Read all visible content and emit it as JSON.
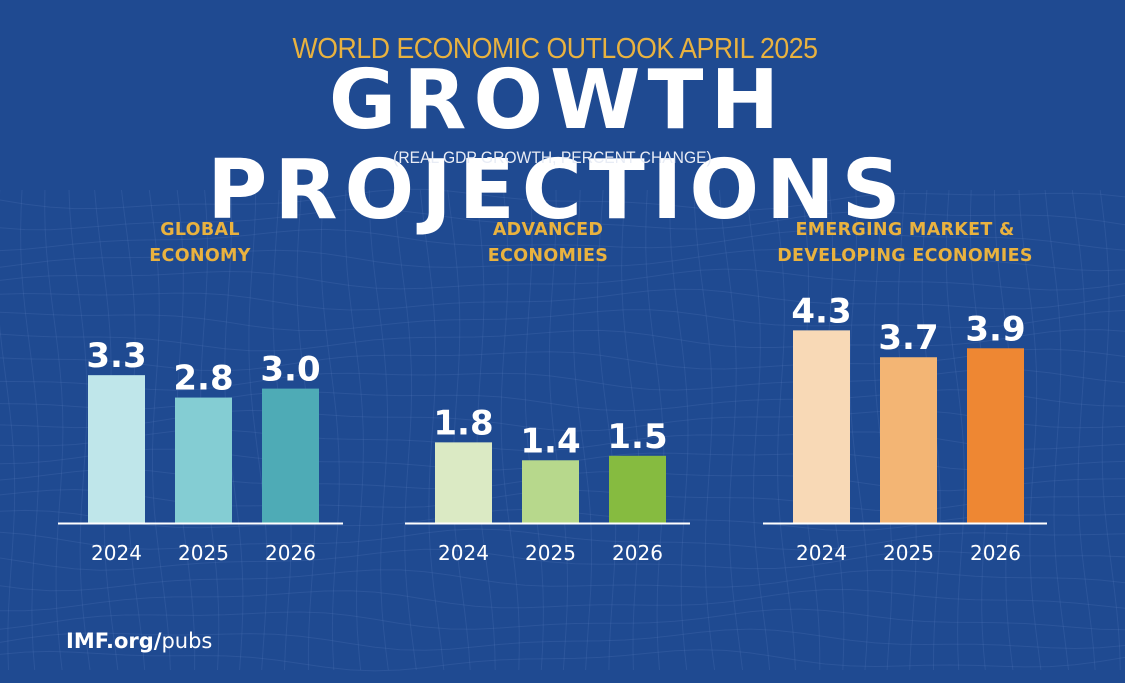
{
  "header": {
    "kicker": "WORLD ECONOMIC OUTLOOK APRIL 2025",
    "title": "GROWTH PROJECTIONS",
    "subtitle": "(REAL GDP GROWTH, PERCENT CHANGE)"
  },
  "footer": {
    "link_bold": "IMF.org/",
    "link_light": "pubs"
  },
  "colors": {
    "background": "#1f4a91",
    "gold": "#e9b23f",
    "label": "#ffffff"
  },
  "chart_data": [
    {
      "type": "bar",
      "title": "GLOBAL ECONOMY",
      "title_lines": [
        "GLOBAL",
        "ECONOMY"
      ],
      "categories": [
        "2024",
        "2025",
        "2026"
      ],
      "values": [
        3.3,
        2.8,
        3.0
      ],
      "value_labels": [
        "3.3",
        "2.8",
        "3.0"
      ],
      "bar_colors": [
        "#bfe6ea",
        "#84cdd3",
        "#4eabb6"
      ],
      "xlabel": "",
      "ylabel": "Real GDP growth (%)",
      "ylim": [
        0,
        4.5
      ],
      "grid": false
    },
    {
      "type": "bar",
      "title": "ADVANCED ECONOMIES",
      "title_lines": [
        "ADVANCED",
        "ECONOMIES"
      ],
      "categories": [
        "2024",
        "2025",
        "2026"
      ],
      "values": [
        1.8,
        1.4,
        1.5
      ],
      "value_labels": [
        "1.8",
        "1.4",
        "1.5"
      ],
      "bar_colors": [
        "#dbeac4",
        "#b7d88c",
        "#86bb40"
      ],
      "xlabel": "",
      "ylabel": "Real GDP growth (%)",
      "ylim": [
        0,
        4.5
      ],
      "grid": false
    },
    {
      "type": "bar",
      "title": "EMERGING MARKET & DEVELOPING ECONOMIES",
      "title_lines": [
        "EMERGING MARKET &",
        "DEVELOPING ECONOMIES"
      ],
      "categories": [
        "2024",
        "2025",
        "2026"
      ],
      "values": [
        4.3,
        3.7,
        3.9
      ],
      "value_labels": [
        "4.3",
        "3.7",
        "3.9"
      ],
      "bar_colors": [
        "#f8d9b6",
        "#f3b574",
        "#ee8733"
      ],
      "xlabel": "",
      "ylabel": "Real GDP growth (%)",
      "ylim": [
        0,
        4.5
      ],
      "grid": false
    }
  ]
}
